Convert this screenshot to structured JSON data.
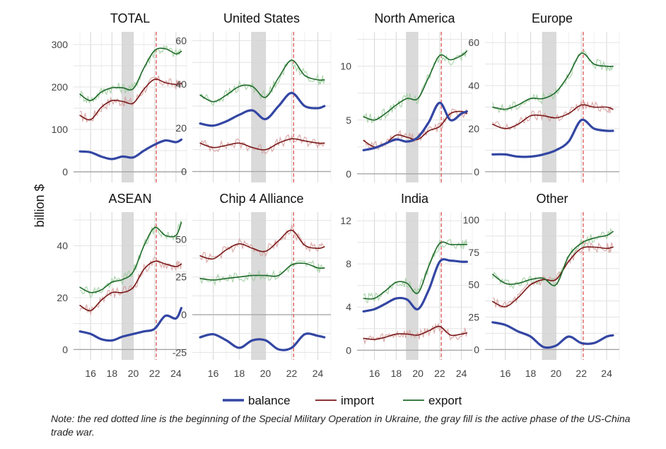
{
  "figure": {
    "ylabel": "billion $",
    "note": "Note: the red dotted line is the beginning of the Special Military Operation in Ukraine, the gray fill is the active phase of the US-China trade war.",
    "legend": [
      {
        "key": "balance",
        "label": "balance",
        "color": "#3346a3"
      },
      {
        "key": "import",
        "label": "import",
        "color": "#7a1a1a"
      },
      {
        "key": "export",
        "label": "export",
        "color": "#1f6b2a"
      }
    ],
    "colors": {
      "balance": "#3346a3",
      "import": "#7a1a1a",
      "export": "#1f6b2a",
      "import_raw": "#d59a9a",
      "export_raw": "#9ccc9c",
      "shade": "#d3d3d3",
      "marker": "#e06060"
    }
  },
  "chart_data": [
    {
      "type": "line",
      "title": "TOTAL",
      "ylim": [
        -25,
        330
      ],
      "yticks": [
        0,
        100,
        200,
        300
      ],
      "x": [
        15,
        16,
        17,
        18,
        19,
        20,
        21,
        22,
        23,
        24,
        24.5
      ],
      "xticks": [
        16,
        18,
        20,
        22,
        24
      ],
      "shade": [
        18.9,
        20.0
      ],
      "vline": 22.15,
      "series": [
        {
          "name": "balance",
          "values": [
            48,
            46,
            36,
            30,
            36,
            34,
            50,
            64,
            74,
            70,
            76
          ]
        },
        {
          "name": "import",
          "values": [
            133,
            123,
            152,
            168,
            166,
            162,
            195,
            218,
            210,
            206,
            208
          ]
        },
        {
          "name": "export",
          "values": [
            183,
            168,
            188,
            198,
            198,
            196,
            245,
            286,
            290,
            278,
            284
          ]
        }
      ]
    },
    {
      "type": "line",
      "title": "United States",
      "ylim": [
        -5,
        64
      ],
      "yticks": [
        0,
        20,
        40,
        60
      ],
      "x": [
        15,
        16,
        17,
        18,
        19,
        20,
        21,
        22,
        23,
        24,
        24.5
      ],
      "xticks": [
        16,
        18,
        20,
        22,
        24
      ],
      "shade": [
        18.9,
        20.0
      ],
      "vline": 22.15,
      "series": [
        {
          "name": "balance",
          "values": [
            22,
            21,
            23,
            26,
            28,
            24,
            30,
            36,
            30,
            29,
            30
          ]
        },
        {
          "name": "import",
          "values": [
            13,
            11,
            12,
            13,
            11,
            10,
            13,
            15,
            14,
            13,
            13
          ]
        },
        {
          "name": "export",
          "values": [
            35,
            32,
            35,
            39,
            39,
            34,
            43,
            51,
            44,
            42,
            42
          ]
        }
      ]
    },
    {
      "type": "line",
      "title": "North America",
      "ylim": [
        -0.8,
        13.2
      ],
      "yticks": [
        0,
        5,
        10
      ],
      "x": [
        15,
        16,
        17,
        18,
        19,
        20,
        21,
        22,
        23,
        24,
        24.5
      ],
      "xticks": [
        16,
        18,
        20,
        22,
        24
      ],
      "shade": [
        18.9,
        20.0
      ],
      "vline": 22.15,
      "series": [
        {
          "name": "balance",
          "values": [
            2.2,
            2.4,
            2.8,
            3.2,
            3.0,
            3.4,
            4.8,
            6.6,
            5.0,
            5.6,
            5.8
          ]
        },
        {
          "name": "import",
          "values": [
            3.1,
            2.5,
            2.8,
            3.6,
            3.4,
            3.2,
            4.0,
            4.4,
            5.6,
            5.8,
            5.6
          ]
        },
        {
          "name": "export",
          "values": [
            5.3,
            5.0,
            5.6,
            6.4,
            7.0,
            7.0,
            9.0,
            11.0,
            10.6,
            11.0,
            11.4
          ]
        }
      ]
    },
    {
      "type": "line",
      "title": "Europe",
      "ylim": [
        -5,
        65
      ],
      "yticks": [
        0,
        20,
        40,
        60
      ],
      "x": [
        15,
        16,
        17,
        18,
        19,
        20,
        21,
        22,
        23,
        24,
        24.5
      ],
      "xticks": [
        16,
        18,
        20,
        22,
        24
      ],
      "shade": [
        18.9,
        20.0
      ],
      "vline": 22.15,
      "series": [
        {
          "name": "balance",
          "values": [
            8,
            8,
            7,
            7,
            8,
            10,
            14,
            24,
            20,
            19,
            19
          ]
        },
        {
          "name": "import",
          "values": [
            22,
            20,
            22,
            26,
            26,
            25,
            27,
            31,
            30,
            30,
            29
          ]
        },
        {
          "name": "export",
          "values": [
            30,
            29,
            31,
            34,
            34,
            37,
            45,
            55,
            50,
            49,
            49
          ]
        }
      ]
    },
    {
      "type": "line",
      "title": "ASEAN",
      "ylim": [
        -4,
        53
      ],
      "yticks": [
        0,
        20,
        40
      ],
      "x": [
        15,
        16,
        17,
        18,
        19,
        20,
        21,
        22,
        23,
        24,
        24.5
      ],
      "xticks": [
        16,
        18,
        20,
        22,
        24
      ],
      "shade": [
        18.9,
        20.0
      ],
      "vline": 22.15,
      "series": [
        {
          "name": "balance",
          "values": [
            7,
            6,
            4,
            3.5,
            5,
            6,
            7,
            8,
            13,
            12,
            16
          ]
        },
        {
          "name": "import",
          "values": [
            17,
            15,
            19,
            22,
            22,
            24,
            31,
            34,
            33,
            32,
            33
          ]
        },
        {
          "name": "export",
          "values": [
            24,
            22,
            23,
            26,
            27,
            30,
            40,
            47,
            44,
            44,
            49
          ]
        }
      ]
    },
    {
      "type": "line",
      "title": "Chip 4 Alliance",
      "ylim": [
        -30,
        68
      ],
      "yticks": [
        -25,
        0,
        25,
        50
      ],
      "x": [
        15,
        16,
        17,
        18,
        19,
        20,
        21,
        22,
        23,
        24,
        24.5
      ],
      "xticks": [
        16,
        18,
        20,
        22,
        24
      ],
      "shade": [
        18.9,
        20.0
      ],
      "vline": 22.15,
      "series": [
        {
          "name": "balance",
          "values": [
            -15,
            -13,
            -17,
            -22,
            -17,
            -17,
            -23,
            -22,
            -13,
            -14,
            -15
          ]
        },
        {
          "name": "import",
          "values": [
            39,
            37,
            43,
            47,
            44,
            42,
            49,
            56,
            46,
            44,
            45
          ]
        },
        {
          "name": "export",
          "values": [
            24,
            23,
            24,
            25,
            26,
            26,
            26,
            33,
            34,
            31,
            31
          ]
        }
      ]
    },
    {
      "type": "line",
      "title": "India",
      "ylim": [
        -0.9,
        12.8
      ],
      "yticks": [
        0,
        4,
        8,
        12
      ],
      "x": [
        15,
        16,
        17,
        18,
        19,
        20,
        21,
        22,
        23,
        24,
        24.5
      ],
      "xticks": [
        16,
        18,
        20,
        22,
        24
      ],
      "shade": [
        18.9,
        20.0
      ],
      "vline": 22.15,
      "series": [
        {
          "name": "balance",
          "values": [
            3.6,
            3.8,
            4.3,
            4.8,
            4.7,
            3.8,
            5.6,
            8.2,
            8.3,
            8.2,
            8.2
          ]
        },
        {
          "name": "import",
          "values": [
            1.1,
            1.0,
            1.2,
            1.5,
            1.5,
            1.4,
            1.8,
            2.2,
            1.4,
            1.5,
            1.6
          ]
        },
        {
          "name": "export",
          "values": [
            4.8,
            4.8,
            5.5,
            6.3,
            6.2,
            5.3,
            7.8,
            9.9,
            9.8,
            9.8,
            9.8
          ]
        }
      ]
    },
    {
      "type": "line",
      "title": "Other",
      "ylim": [
        -8,
        106
      ],
      "yticks": [
        0,
        25,
        50,
        75,
        100
      ],
      "x": [
        15,
        16,
        17,
        18,
        19,
        20,
        21,
        22,
        23,
        24,
        24.5
      ],
      "xticks": [
        16,
        18,
        20,
        22,
        24
      ],
      "shade": [
        18.9,
        20.0
      ],
      "vline": 22.15,
      "series": [
        {
          "name": "balance",
          "values": [
            21,
            19,
            14,
            10,
            2,
            3,
            10,
            5,
            5,
            10,
            11
          ]
        },
        {
          "name": "import",
          "values": [
            37,
            33,
            40,
            50,
            54,
            54,
            68,
            78,
            79,
            78,
            79
          ]
        },
        {
          "name": "export",
          "values": [
            58,
            51,
            51,
            54,
            55,
            50,
            72,
            82,
            86,
            88,
            91
          ]
        }
      ]
    }
  ]
}
